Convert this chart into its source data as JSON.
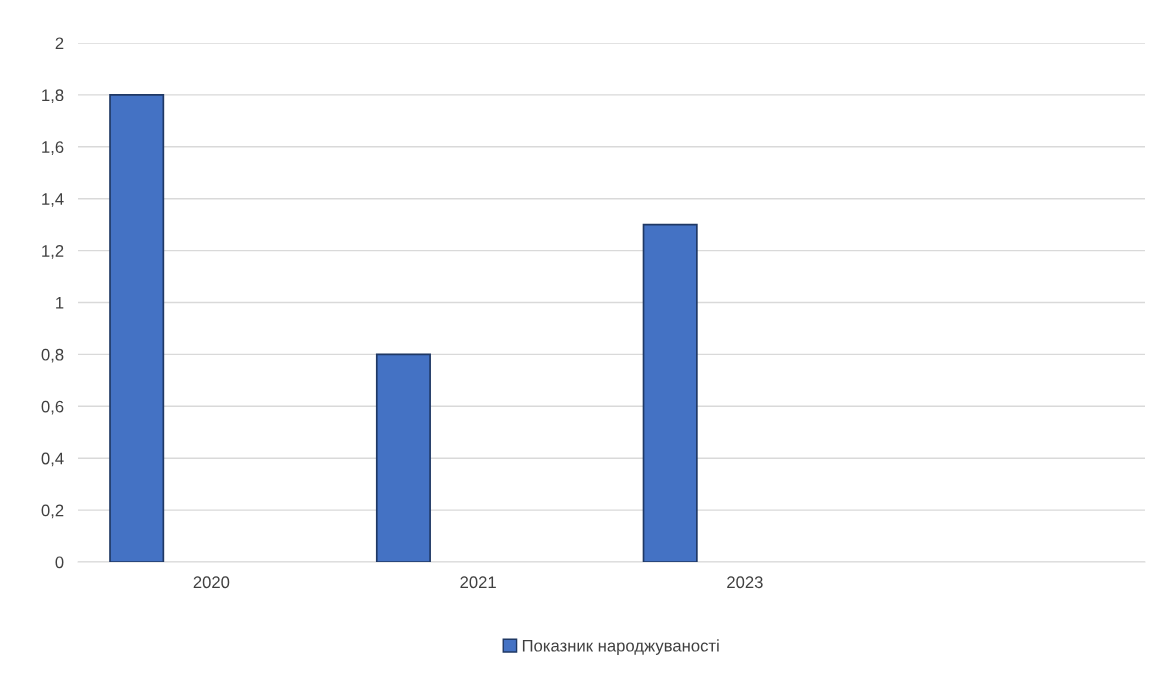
{
  "chart_data": {
    "type": "bar",
    "categories": [
      "2020",
      "2021",
      "2023",
      null
    ],
    "series": [
      {
        "name": "Показник народжуваності",
        "color": "#4472c4",
        "values": [
          1.8,
          0.8,
          1.3,
          null
        ]
      }
    ],
    "ylim": [
      0,
      2
    ],
    "yticks": [
      0,
      {
        "value": 0.2,
        "label": "0,2"
      },
      {
        "value": 0.4,
        "label": "0,4"
      },
      {
        "value": 0.6,
        "label": "0,6"
      },
      {
        "value": 0.8,
        "label": "0,8"
      },
      1,
      {
        "value": 1.2,
        "label": "1,2"
      },
      {
        "value": 1.4,
        "label": "1,4"
      },
      {
        "value": 1.6,
        "label": "1,6"
      },
      {
        "value": 1.8,
        "label": "1,8"
      },
      2
    ],
    "grid": "y",
    "legend": "bottom"
  }
}
